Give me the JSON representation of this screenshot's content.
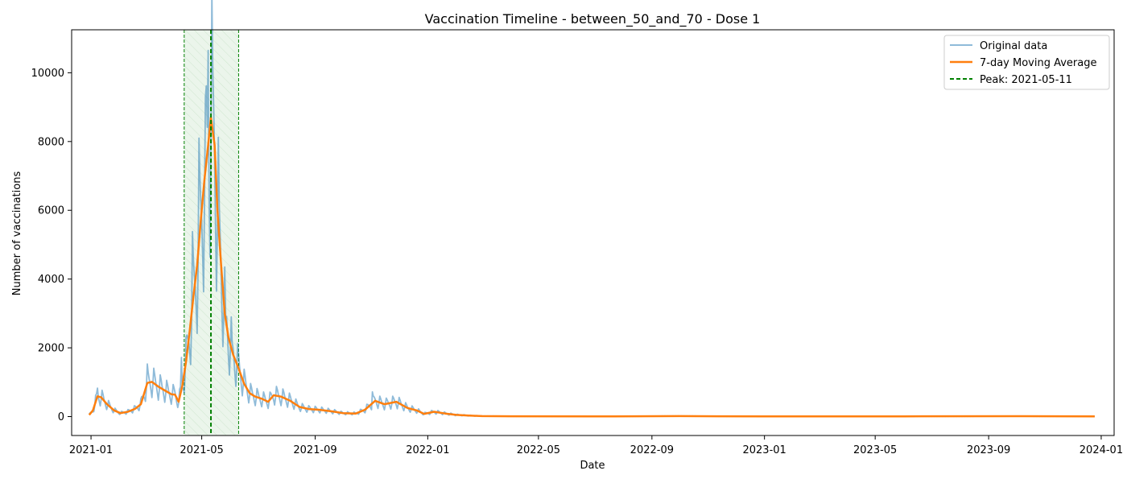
{
  "chart_data": {
    "type": "line",
    "title": "Vaccination Timeline - between_50_and_70 - Dose 1",
    "xlabel": "Date",
    "ylabel": "Number of vaccinations",
    "xlim": [
      "2020-12-11",
      "2024-01-15"
    ],
    "ylim": [
      -550,
      11250
    ],
    "x_ticks": [
      "2021-01",
      "2021-05",
      "2021-09",
      "2022-01",
      "2022-05",
      "2022-09",
      "2023-01",
      "2023-05",
      "2023-09",
      "2024-01"
    ],
    "y_ticks": [
      0,
      2000,
      4000,
      6000,
      8000,
      10000
    ],
    "grid": false,
    "legend_position": "top-right",
    "legend": [
      "Original data",
      "7-day Moving Average",
      "Peak: 2021-05-11"
    ],
    "colors": {
      "original": "#1f77b4",
      "moving_average": "#ff7f0e",
      "peak": "#008000"
    },
    "peak": {
      "date": "2021-05-11",
      "window_start": "2021-04-12",
      "window_end": "2021-06-10"
    },
    "original_note": "daily series, weekday/weekend oscillation around the moving average",
    "original_peak_points": [
      {
        "date": "2021-01-08",
        "value": 830
      },
      {
        "date": "2021-03-03",
        "value": 1530
      },
      {
        "date": "2021-04-09",
        "value": 1720
      },
      {
        "date": "2021-04-21",
        "value": 5380
      },
      {
        "date": "2021-04-28",
        "value": 8100
      },
      {
        "date": "2021-05-05",
        "value": 9300
      },
      {
        "date": "2021-05-08",
        "value": 10650
      },
      {
        "date": "2021-05-13",
        "value": 10150
      },
      {
        "date": "2021-05-20",
        "value": 6100
      },
      {
        "date": "2021-05-27",
        "value": 2800
      },
      {
        "date": "2021-06-03",
        "value": 2150
      },
      {
        "date": "2021-11-02",
        "value": 720
      }
    ],
    "series": [
      {
        "name": "7-day Moving Average",
        "points": [
          [
            "2020-12-30",
            50
          ],
          [
            "2021-01-03",
            180
          ],
          [
            "2021-01-08",
            590
          ],
          [
            "2021-01-12",
            560
          ],
          [
            "2021-01-18",
            370
          ],
          [
            "2021-01-26",
            180
          ],
          [
            "2021-02-02",
            100
          ],
          [
            "2021-02-10",
            140
          ],
          [
            "2021-02-18",
            230
          ],
          [
            "2021-02-24",
            360
          ],
          [
            "2021-03-03",
            980
          ],
          [
            "2021-03-08",
            1010
          ],
          [
            "2021-03-15",
            870
          ],
          [
            "2021-03-22",
            760
          ],
          [
            "2021-03-29",
            650
          ],
          [
            "2021-04-02",
            640
          ],
          [
            "2021-04-06",
            430
          ],
          [
            "2021-04-10",
            900
          ],
          [
            "2021-04-14",
            1600
          ],
          [
            "2021-04-18",
            2500
          ],
          [
            "2021-04-22",
            3500
          ],
          [
            "2021-04-26",
            4400
          ],
          [
            "2021-04-30",
            5700
          ],
          [
            "2021-05-04",
            6900
          ],
          [
            "2021-05-08",
            7900
          ],
          [
            "2021-05-11",
            8700
          ],
          [
            "2021-05-15",
            7900
          ],
          [
            "2021-05-18",
            6000
          ],
          [
            "2021-05-22",
            4400
          ],
          [
            "2021-05-26",
            3000
          ],
          [
            "2021-05-30",
            2300
          ],
          [
            "2021-06-04",
            1800
          ],
          [
            "2021-06-10",
            1400
          ],
          [
            "2021-06-16",
            950
          ],
          [
            "2021-06-22",
            680
          ],
          [
            "2021-06-28",
            580
          ],
          [
            "2021-07-05",
            520
          ],
          [
            "2021-07-12",
            430
          ],
          [
            "2021-07-18",
            620
          ],
          [
            "2021-07-26",
            580
          ],
          [
            "2021-08-05",
            460
          ],
          [
            "2021-08-15",
            280
          ],
          [
            "2021-08-25",
            220
          ],
          [
            "2021-09-05",
            200
          ],
          [
            "2021-09-20",
            150
          ],
          [
            "2021-10-01",
            100
          ],
          [
            "2021-10-15",
            90
          ],
          [
            "2021-10-25",
            200
          ],
          [
            "2021-11-05",
            460
          ],
          [
            "2021-11-15",
            360
          ],
          [
            "2021-11-28",
            430
          ],
          [
            "2021-12-10",
            250
          ],
          [
            "2021-12-20",
            180
          ],
          [
            "2021-12-28",
            80
          ],
          [
            "2022-01-08",
            140
          ],
          [
            "2022-01-20",
            90
          ],
          [
            "2022-02-01",
            50
          ],
          [
            "2022-02-15",
            30
          ],
          [
            "2022-03-01",
            15
          ],
          [
            "2022-04-01",
            10
          ],
          [
            "2022-07-01",
            5
          ],
          [
            "2022-10-01",
            15
          ],
          [
            "2023-01-01",
            5
          ],
          [
            "2023-06-01",
            8
          ],
          [
            "2023-10-01",
            12
          ],
          [
            "2023-12-25",
            5
          ]
        ]
      }
    ]
  }
}
